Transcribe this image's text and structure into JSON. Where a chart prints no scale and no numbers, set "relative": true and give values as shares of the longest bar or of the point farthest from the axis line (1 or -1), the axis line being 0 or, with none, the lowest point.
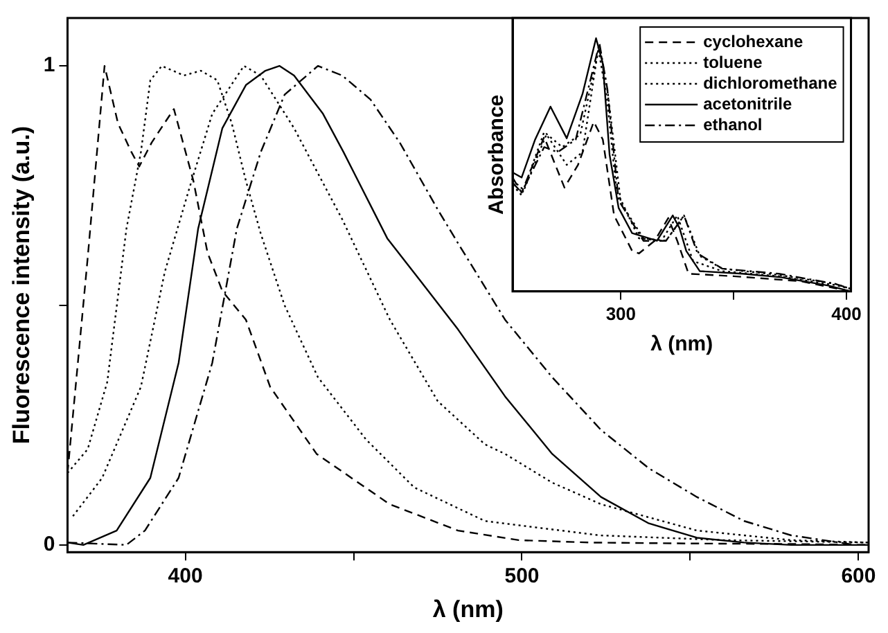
{
  "chart_data": [
    {
      "type": "line",
      "xlabel": "λ (nm)",
      "ylabel": "Fluorescence intensity (a.u.)",
      "xlim": [
        365,
        603
      ],
      "ylim": [
        -0.015,
        1.1
      ],
      "xticks": [
        400,
        {
          "value": 450,
          "label": null
        },
        500,
        {
          "value": 550,
          "label": null
        },
        600
      ],
      "yticks": [
        0,
        {
          "value": 0.5,
          "label": null
        },
        1
      ],
      "grid": false,
      "legend": false,
      "series": [
        {
          "color": "#000000",
          "line_style": "dashed",
          "x": [
            365,
            371,
            376,
            380,
            384,
            386.3,
            390,
            396.6,
            402.4,
            406.6,
            411,
            418,
            425.2,
            439,
            460.7,
            481,
            499,
            520,
            550,
            580,
            603
          ],
          "values": [
            0.15,
            0.6,
            1.0,
            0.88,
            0.82,
            0.79,
            0.84,
            0.91,
            0.76,
            0.61,
            0.53,
            0.47,
            0.33,
            0.19,
            0.085,
            0.03,
            0.01,
            0.005,
            0.003,
            0.002,
            0.0
          ]
        },
        {
          "color": "#000000",
          "line_style": "dotted",
          "x": [
            365,
            371,
            376.8,
            382.5,
            386.8,
            389.6,
            393,
            399.6,
            404.6,
            409.5,
            413.8,
            418,
            422.4,
            429.5,
            439.4,
            453.7,
            468,
            489,
            523,
            560,
            603
          ],
          "values": [
            0.15,
            0.2,
            0.34,
            0.66,
            0.82,
            0.97,
            1.0,
            0.98,
            0.99,
            0.97,
            0.88,
            0.76,
            0.65,
            0.5,
            0.35,
            0.22,
            0.12,
            0.05,
            0.02,
            0.01,
            0.005
          ]
        },
        {
          "color": "#000000",
          "line_style": "dotted",
          "x": [
            366.6,
            375.3,
            386.8,
            393.9,
            401,
            408,
            417.4,
            422.4,
            432.3,
            446.6,
            460.8,
            475,
            489,
            495,
            509,
            523.5,
            552,
            580,
            603
          ],
          "values": [
            0.06,
            0.14,
            0.33,
            0.57,
            0.74,
            0.9,
            1.0,
            0.98,
            0.87,
            0.68,
            0.47,
            0.3,
            0.21,
            0.19,
            0.13,
            0.085,
            0.03,
            0.01,
            0.005
          ]
        },
        {
          "color": "#000000",
          "line_style": "solid",
          "x": [
            365,
            369.7,
            379.6,
            389.6,
            398,
            403.8,
            411,
            418,
            423.8,
            428,
            432.3,
            440.9,
            447,
            460,
            470,
            481,
            495,
            509,
            523.5,
            537.7,
            552,
            566,
            580,
            603
          ],
          "values": [
            0.005,
            0.0,
            0.03,
            0.14,
            0.38,
            0.66,
            0.87,
            0.96,
            0.99,
            1.0,
            0.98,
            0.9,
            0.82,
            0.64,
            0.55,
            0.45,
            0.31,
            0.19,
            0.1,
            0.045,
            0.015,
            0.005,
            0.0,
            0.0
          ]
        },
        {
          "color": "#000000",
          "line_style": "dashdot",
          "x": [
            365,
            382.5,
            388,
            398,
            408,
            415.3,
            422.4,
            429.5,
            439.4,
            446.6,
            455,
            463.7,
            475,
            481,
            495,
            509,
            523.5,
            537.7,
            552,
            566,
            580,
            599
          ],
          "values": [
            0.005,
            0.0,
            0.03,
            0.14,
            0.38,
            0.66,
            0.82,
            0.94,
            1.0,
            0.98,
            0.93,
            0.84,
            0.7,
            0.63,
            0.47,
            0.35,
            0.24,
            0.16,
            0.1,
            0.05,
            0.02,
            0.0
          ]
        }
      ]
    },
    {
      "type": "line",
      "xlabel": "λ (nm)",
      "ylabel": "Absorbance",
      "xlim": [
        252,
        402
      ],
      "xticks": [
        300,
        {
          "value": 350,
          "label": null
        },
        400
      ],
      "relative": true,
      "tick_labels": "x",
      "grid": false,
      "legend": "top right",
      "series": [
        {
          "name": "cyclohexane",
          "color": "#000000",
          "line_style": "dashed",
          "x": [
            252,
            256,
            266,
            275,
            281,
            288,
            292,
            297,
            305,
            308,
            315,
            321,
            325,
            330,
            350,
            380,
            402
          ],
          "values": [
            0.45,
            0.39,
            0.61,
            0.41,
            0.5,
            0.67,
            0.6,
            0.3,
            0.16,
            0.15,
            0.2,
            0.29,
            0.2,
            0.07,
            0.06,
            0.04,
            0.0
          ]
        },
        {
          "name": "toluene",
          "color": "#000000",
          "line_style": "dotted",
          "x": [
            252,
            256,
            266,
            274,
            282,
            290.5,
            294,
            300,
            310,
            320,
            328,
            335,
            345,
            370,
            395,
            402
          ],
          "values": [
            0.42,
            0.38,
            0.63,
            0.57,
            0.62,
            0.97,
            0.8,
            0.35,
            0.21,
            0.2,
            0.3,
            0.14,
            0.09,
            0.065,
            0.03,
            0.01
          ]
        },
        {
          "name": "dichloromethane",
          "color": "#000000",
          "line_style": "dotted",
          "x": [
            252,
            257,
            267,
            276,
            283,
            290,
            294,
            298,
            308,
            318,
            325,
            332,
            345,
            370,
            395,
            402
          ],
          "values": [
            0.44,
            0.4,
            0.62,
            0.5,
            0.55,
            0.96,
            0.75,
            0.4,
            0.21,
            0.2,
            0.3,
            0.12,
            0.08,
            0.06,
            0.025,
            0.01
          ]
        },
        {
          "name": "acetonitrile",
          "color": "#000000",
          "line_style": "solid",
          "x": [
            252,
            256,
            262,
            268.8,
            276,
            283,
            289,
            292,
            295,
            299,
            305,
            316,
            323,
            326,
            329,
            335,
            354,
            371,
            392,
            402
          ],
          "values": [
            0.47,
            0.45,
            0.6,
            0.73,
            0.605,
            0.78,
            1.0,
            0.9,
            0.54,
            0.33,
            0.23,
            0.2,
            0.3,
            0.25,
            0.16,
            0.08,
            0.07,
            0.056,
            0.023,
            0.0
          ]
        },
        {
          "name": "ethanol",
          "color": "#000000",
          "line_style": "dashdot",
          "x": [
            252,
            256,
            266,
            272,
            280,
            290.5,
            294,
            299,
            310,
            320,
            328,
            334,
            345,
            370,
            395,
            402
          ],
          "values": [
            0.43,
            0.39,
            0.57,
            0.55,
            0.6,
            0.98,
            0.8,
            0.36,
            0.2,
            0.2,
            0.3,
            0.15,
            0.09,
            0.07,
            0.03,
            0.01
          ]
        }
      ]
    }
  ]
}
